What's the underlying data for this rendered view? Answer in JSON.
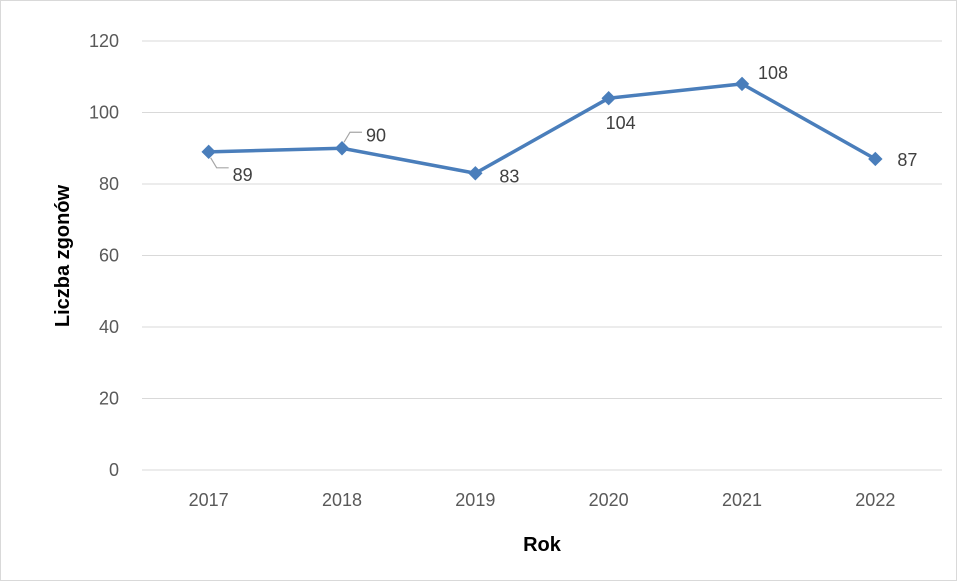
{
  "chart_data": {
    "type": "line",
    "x": [
      "2017",
      "2018",
      "2019",
      "2020",
      "2021",
      "2022"
    ],
    "series": [
      {
        "values": [
          89,
          90,
          83,
          104,
          108,
          87
        ],
        "data_labels": [
          "89",
          "90",
          "83",
          "104",
          "108",
          "87"
        ]
      }
    ],
    "xlabel": "Rok",
    "ylabel": "Liczba zgonów",
    "ylim": [
      0,
      120
    ],
    "yticks": [
      0,
      20,
      40,
      60,
      80,
      100,
      120
    ],
    "yticklabels": [
      "0",
      "20",
      "40",
      "60",
      "80",
      "100",
      "120"
    ],
    "grid": true,
    "legend": "none",
    "marker": "diamond"
  },
  "colors": {
    "line": "#4a7ebb",
    "marker": "#4a7ebb",
    "grid": "#d9d9d9",
    "leader": "#a6a6a6"
  }
}
